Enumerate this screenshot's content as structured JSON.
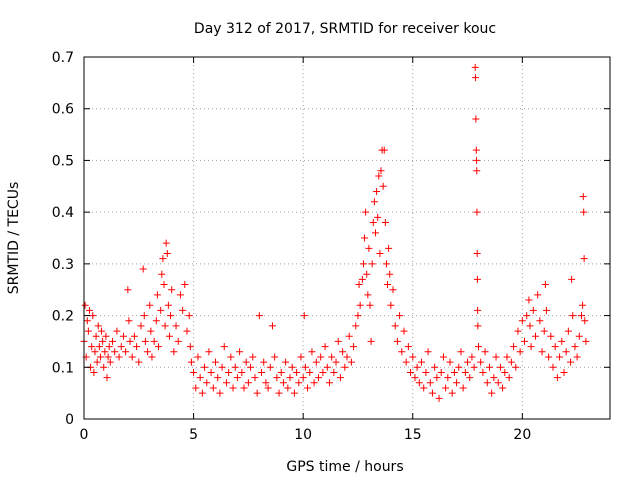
{
  "chart_data": {
    "type": "scatter",
    "title": "Day 312 of 2017, SRMTID for receiver kouc",
    "xlabel": "GPS time / hours",
    "ylabel": "SRMTID / TECUs",
    "xlim": [
      0,
      24
    ],
    "ylim": [
      0,
      0.7
    ],
    "x_ticks": [
      0,
      5,
      10,
      15,
      20
    ],
    "x_tick_labels": [
      "0",
      "5",
      "10",
      "15",
      "20"
    ],
    "y_ticks": [
      0,
      0.1,
      0.2,
      0.3,
      0.4,
      0.5,
      0.6,
      0.7
    ],
    "y_tick_labels": [
      "0",
      "0.1",
      "0.2",
      "0.3",
      "0.4",
      "0.5",
      "0.6",
      "0.7"
    ],
    "grid": true,
    "marker": "+",
    "color": "#ff0000",
    "series": [
      {
        "name": "SRMTID",
        "points": [
          [
            0.0,
            0.15
          ],
          [
            0.05,
            0.22
          ],
          [
            0.1,
            0.12
          ],
          [
            0.15,
            0.19
          ],
          [
            0.2,
            0.17
          ],
          [
            0.25,
            0.21
          ],
          [
            0.3,
            0.1
          ],
          [
            0.35,
            0.14
          ],
          [
            0.4,
            0.2
          ],
          [
            0.45,
            0.09
          ],
          [
            0.5,
            0.13
          ],
          [
            0.55,
            0.16
          ],
          [
            0.6,
            0.11
          ],
          [
            0.65,
            0.18
          ],
          [
            0.7,
            0.14
          ],
          [
            0.75,
            0.12
          ],
          [
            0.8,
            0.17
          ],
          [
            0.85,
            0.15
          ],
          [
            0.9,
            0.1
          ],
          [
            0.95,
            0.13
          ],
          [
            1.0,
            0.16
          ],
          [
            1.05,
            0.08
          ],
          [
            1.1,
            0.12
          ],
          [
            1.15,
            0.14
          ],
          [
            1.2,
            0.11
          ],
          [
            1.3,
            0.15
          ],
          [
            1.4,
            0.13
          ],
          [
            1.5,
            0.17
          ],
          [
            1.6,
            0.12
          ],
          [
            1.7,
            0.14
          ],
          [
            1.8,
            0.16
          ],
          [
            1.9,
            0.13
          ],
          [
            2.0,
            0.25
          ],
          [
            2.05,
            0.19
          ],
          [
            2.1,
            0.15
          ],
          [
            2.2,
            0.12
          ],
          [
            2.3,
            0.16
          ],
          [
            2.4,
            0.14
          ],
          [
            2.5,
            0.11
          ],
          [
            2.6,
            0.18
          ],
          [
            2.7,
            0.29
          ],
          [
            2.75,
            0.2
          ],
          [
            2.8,
            0.15
          ],
          [
            2.9,
            0.13
          ],
          [
            3.0,
            0.22
          ],
          [
            3.05,
            0.17
          ],
          [
            3.1,
            0.12
          ],
          [
            3.2,
            0.15
          ],
          [
            3.3,
            0.19
          ],
          [
            3.35,
            0.24
          ],
          [
            3.4,
            0.14
          ],
          [
            3.5,
            0.21
          ],
          [
            3.55,
            0.28
          ],
          [
            3.6,
            0.31
          ],
          [
            3.65,
            0.26
          ],
          [
            3.7,
            0.18
          ],
          [
            3.75,
            0.34
          ],
          [
            3.8,
            0.32
          ],
          [
            3.85,
            0.22
          ],
          [
            3.9,
            0.16
          ],
          [
            3.95,
            0.2
          ],
          [
            4.0,
            0.25
          ],
          [
            4.1,
            0.13
          ],
          [
            4.2,
            0.18
          ],
          [
            4.3,
            0.15
          ],
          [
            4.4,
            0.24
          ],
          [
            4.5,
            0.21
          ],
          [
            4.6,
            0.26
          ],
          [
            4.7,
            0.17
          ],
          [
            4.8,
            0.2
          ],
          [
            4.85,
            0.14
          ],
          [
            4.9,
            0.11
          ],
          [
            5.0,
            0.09
          ],
          [
            5.1,
            0.06
          ],
          [
            5.2,
            0.12
          ],
          [
            5.3,
            0.08
          ],
          [
            5.4,
            0.05
          ],
          [
            5.5,
            0.1
          ],
          [
            5.6,
            0.07
          ],
          [
            5.7,
            0.13
          ],
          [
            5.8,
            0.09
          ],
          [
            5.9,
            0.06
          ],
          [
            6.0,
            0.11
          ],
          [
            6.1,
            0.08
          ],
          [
            6.2,
            0.05
          ],
          [
            6.3,
            0.1
          ],
          [
            6.4,
            0.14
          ],
          [
            6.5,
            0.07
          ],
          [
            6.6,
            0.09
          ],
          [
            6.7,
            0.12
          ],
          [
            6.8,
            0.06
          ],
          [
            6.9,
            0.1
          ],
          [
            7.0,
            0.08
          ],
          [
            7.1,
            0.13
          ],
          [
            7.2,
            0.09
          ],
          [
            7.3,
            0.06
          ],
          [
            7.4,
            0.11
          ],
          [
            7.5,
            0.07
          ],
          [
            7.6,
            0.1
          ],
          [
            7.7,
            0.12
          ],
          [
            7.8,
            0.08
          ],
          [
            7.9,
            0.05
          ],
          [
            8.0,
            0.2
          ],
          [
            8.1,
            0.09
          ],
          [
            8.2,
            0.11
          ],
          [
            8.3,
            0.07
          ],
          [
            8.4,
            0.06
          ],
          [
            8.5,
            0.1
          ],
          [
            8.6,
            0.18
          ],
          [
            8.7,
            0.12
          ],
          [
            8.8,
            0.08
          ],
          [
            8.9,
            0.05
          ],
          [
            9.0,
            0.09
          ],
          [
            9.1,
            0.07
          ],
          [
            9.2,
            0.11
          ],
          [
            9.3,
            0.06
          ],
          [
            9.4,
            0.08
          ],
          [
            9.5,
            0.1
          ],
          [
            9.6,
            0.05
          ],
          [
            9.7,
            0.09
          ],
          [
            9.8,
            0.07
          ],
          [
            9.9,
            0.12
          ],
          [
            10.0,
            0.08
          ],
          [
            10.05,
            0.2
          ],
          [
            10.1,
            0.1
          ],
          [
            10.2,
            0.06
          ],
          [
            10.3,
            0.09
          ],
          [
            10.4,
            0.13
          ],
          [
            10.5,
            0.07
          ],
          [
            10.6,
            0.11
          ],
          [
            10.7,
            0.08
          ],
          [
            10.8,
            0.12
          ],
          [
            10.9,
            0.09
          ],
          [
            11.0,
            0.14
          ],
          [
            11.1,
            0.1
          ],
          [
            11.2,
            0.07
          ],
          [
            11.3,
            0.12
          ],
          [
            11.4,
            0.09
          ],
          [
            11.5,
            0.11
          ],
          [
            11.6,
            0.15
          ],
          [
            11.7,
            0.08
          ],
          [
            11.8,
            0.13
          ],
          [
            11.9,
            0.1
          ],
          [
            12.0,
            0.12
          ],
          [
            12.1,
            0.16
          ],
          [
            12.2,
            0.11
          ],
          [
            12.3,
            0.14
          ],
          [
            12.4,
            0.18
          ],
          [
            12.5,
            0.2
          ],
          [
            12.55,
            0.26
          ],
          [
            12.6,
            0.22
          ],
          [
            12.7,
            0.27
          ],
          [
            12.75,
            0.3
          ],
          [
            12.8,
            0.35
          ],
          [
            12.85,
            0.4
          ],
          [
            12.9,
            0.28
          ],
          [
            12.95,
            0.24
          ],
          [
            13.0,
            0.33
          ],
          [
            13.05,
            0.22
          ],
          [
            13.1,
            0.15
          ],
          [
            13.15,
            0.3
          ],
          [
            13.2,
            0.38
          ],
          [
            13.25,
            0.42
          ],
          [
            13.3,
            0.36
          ],
          [
            13.35,
            0.44
          ],
          [
            13.4,
            0.39
          ],
          [
            13.45,
            0.47
          ],
          [
            13.5,
            0.32
          ],
          [
            13.55,
            0.48
          ],
          [
            13.6,
            0.52
          ],
          [
            13.65,
            0.45
          ],
          [
            13.7,
            0.52
          ],
          [
            13.75,
            0.38
          ],
          [
            13.8,
            0.3
          ],
          [
            13.85,
            0.26
          ],
          [
            13.9,
            0.33
          ],
          [
            13.95,
            0.28
          ],
          [
            14.0,
            0.22
          ],
          [
            14.1,
            0.25
          ],
          [
            14.2,
            0.18
          ],
          [
            14.3,
            0.15
          ],
          [
            14.4,
            0.2
          ],
          [
            14.5,
            0.13
          ],
          [
            14.6,
            0.17
          ],
          [
            14.7,
            0.11
          ],
          [
            14.8,
            0.14
          ],
          [
            14.9,
            0.09
          ],
          [
            15.0,
            0.12
          ],
          [
            15.1,
            0.08
          ],
          [
            15.2,
            0.1
          ],
          [
            15.3,
            0.07
          ],
          [
            15.4,
            0.11
          ],
          [
            15.5,
            0.06
          ],
          [
            15.6,
            0.09
          ],
          [
            15.7,
            0.13
          ],
          [
            15.8,
            0.07
          ],
          [
            15.9,
            0.05
          ],
          [
            16.0,
            0.1
          ],
          [
            16.1,
            0.08
          ],
          [
            16.2,
            0.04
          ],
          [
            16.3,
            0.09
          ],
          [
            16.4,
            0.12
          ],
          [
            16.5,
            0.06
          ],
          [
            16.6,
            0.08
          ],
          [
            16.7,
            0.11
          ],
          [
            16.8,
            0.05
          ],
          [
            16.9,
            0.09
          ],
          [
            17.0,
            0.07
          ],
          [
            17.1,
            0.1
          ],
          [
            17.2,
            0.13
          ],
          [
            17.3,
            0.06
          ],
          [
            17.4,
            0.09
          ],
          [
            17.5,
            0.11
          ],
          [
            17.6,
            0.08
          ],
          [
            17.7,
            0.12
          ],
          [
            17.8,
            0.1
          ],
          [
            17.85,
            0.68
          ],
          [
            17.86,
            0.66
          ],
          [
            17.88,
            0.58
          ],
          [
            17.9,
            0.52
          ],
          [
            17.91,
            0.5
          ],
          [
            17.92,
            0.48
          ],
          [
            17.93,
            0.4
          ],
          [
            17.94,
            0.32
          ],
          [
            17.95,
            0.27
          ],
          [
            17.96,
            0.21
          ],
          [
            17.97,
            0.18
          ],
          [
            18.0,
            0.14
          ],
          [
            18.1,
            0.11
          ],
          [
            18.2,
            0.09
          ],
          [
            18.3,
            0.13
          ],
          [
            18.4,
            0.07
          ],
          [
            18.5,
            0.1
          ],
          [
            18.6,
            0.05
          ],
          [
            18.7,
            0.08
          ],
          [
            18.8,
            0.12
          ],
          [
            18.9,
            0.07
          ],
          [
            19.0,
            0.1
          ],
          [
            19.1,
            0.06
          ],
          [
            19.2,
            0.09
          ],
          [
            19.3,
            0.12
          ],
          [
            19.4,
            0.08
          ],
          [
            19.5,
            0.11
          ],
          [
            19.6,
            0.14
          ],
          [
            19.7,
            0.1
          ],
          [
            19.8,
            0.17
          ],
          [
            19.9,
            0.13
          ],
          [
            20.0,
            0.19
          ],
          [
            20.1,
            0.15
          ],
          [
            20.2,
            0.2
          ],
          [
            20.3,
            0.23
          ],
          [
            20.35,
            0.18
          ],
          [
            20.4,
            0.14
          ],
          [
            20.5,
            0.21
          ],
          [
            20.6,
            0.16
          ],
          [
            20.7,
            0.24
          ],
          [
            20.8,
            0.19
          ],
          [
            20.9,
            0.13
          ],
          [
            21.0,
            0.17
          ],
          [
            21.05,
            0.26
          ],
          [
            21.1,
            0.21
          ],
          [
            21.2,
            0.12
          ],
          [
            21.3,
            0.16
          ],
          [
            21.4,
            0.1
          ],
          [
            21.5,
            0.14
          ],
          [
            21.6,
            0.08
          ],
          [
            21.7,
            0.12
          ],
          [
            21.8,
            0.15
          ],
          [
            21.9,
            0.09
          ],
          [
            22.0,
            0.13
          ],
          [
            22.1,
            0.17
          ],
          [
            22.2,
            0.11
          ],
          [
            22.25,
            0.27
          ],
          [
            22.3,
            0.2
          ],
          [
            22.4,
            0.14
          ],
          [
            22.5,
            0.12
          ],
          [
            22.6,
            0.16
          ],
          [
            22.7,
            0.2
          ],
          [
            22.75,
            0.22
          ],
          [
            22.78,
            0.43
          ],
          [
            22.8,
            0.4
          ],
          [
            22.82,
            0.31
          ],
          [
            22.85,
            0.19
          ],
          [
            22.9,
            0.15
          ]
        ]
      }
    ]
  }
}
